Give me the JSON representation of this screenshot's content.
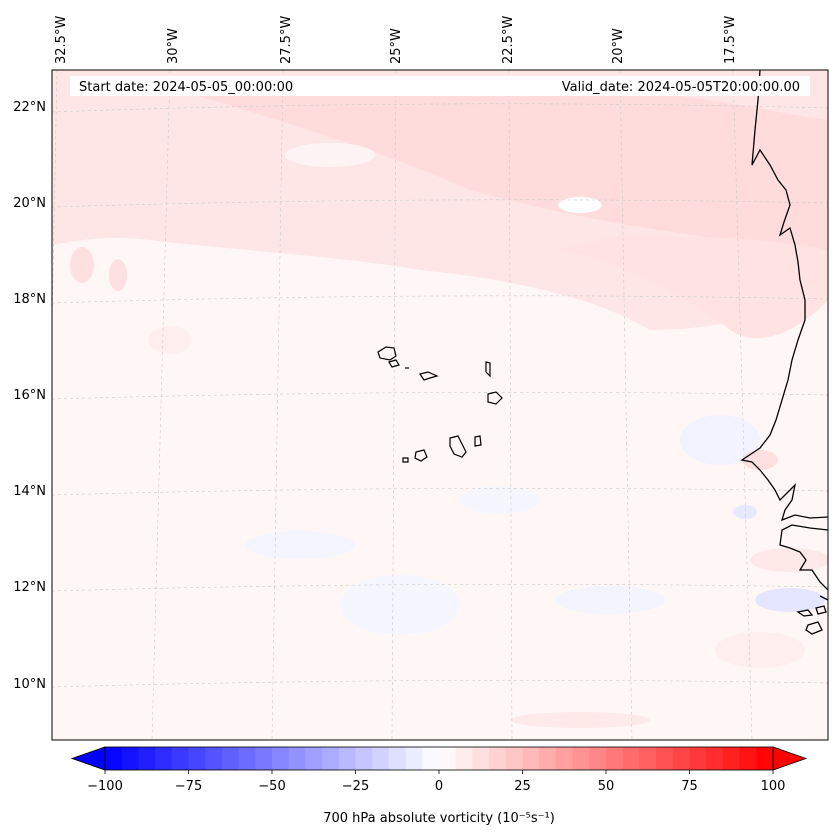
{
  "map": {
    "start_label": "Start date: 2024-05-05_00:00:00",
    "valid_label": "Valid_date: 2024-05-05T20:00:00.00",
    "lon_labels": [
      "32.5°W",
      "30°W",
      "27.5°W",
      "25°W",
      "22.5°W",
      "20°W",
      "17.5°W"
    ],
    "lat_labels": [
      "22°N",
      "20°N",
      "18°N",
      "16°N",
      "14°N",
      "12°N",
      "10°N"
    ],
    "gridlines": true,
    "islands": "Cape Verde",
    "coastline": "West Africa"
  },
  "colorbar": {
    "label": "700 hPa absolute vorticity (10⁻⁵s⁻¹)",
    "ticks": [
      "−100",
      "−75",
      "−50",
      "−25",
      "0",
      "25",
      "50",
      "75",
      "100"
    ],
    "range": [
      -100,
      100
    ],
    "colormap": "bwr",
    "extend": "both",
    "negative_color": "#0000ff",
    "zero_color": "#ffffff",
    "positive_color": "#ff0000"
  }
}
